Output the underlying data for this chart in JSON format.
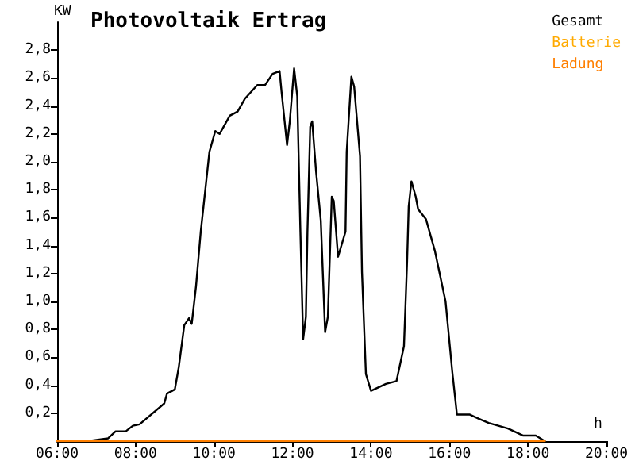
{
  "chart_data": {
    "type": "line",
    "title": "Photovoltaik Ertrag",
    "xlabel": "h",
    "ylabel": "KW",
    "xlim": [
      6,
      20
    ],
    "ylim": [
      0,
      3
    ],
    "xticks": [
      {
        "value": 6,
        "label": "06:00"
      },
      {
        "value": 8,
        "label": "08:00"
      },
      {
        "value": 10,
        "label": "10:00"
      },
      {
        "value": 12,
        "label": "12:00"
      },
      {
        "value": 14,
        "label": "14:00"
      },
      {
        "value": 16,
        "label": "16:00"
      },
      {
        "value": 18,
        "label": "18:00"
      },
      {
        "value": 20,
        "label": "20:00"
      }
    ],
    "yticks": [
      {
        "value": 0.2,
        "label": "0,2"
      },
      {
        "value": 0.4,
        "label": "0,4"
      },
      {
        "value": 0.6,
        "label": "0,6"
      },
      {
        "value": 0.8,
        "label": "0,8"
      },
      {
        "value": 1.0,
        "label": "1,0"
      },
      {
        "value": 1.2,
        "label": "1,2"
      },
      {
        "value": 1.4,
        "label": "1,4"
      },
      {
        "value": 1.6,
        "label": "1,6"
      },
      {
        "value": 1.8,
        "label": "1,8"
      },
      {
        "value": 2.0,
        "label": "2,0"
      },
      {
        "value": 2.2,
        "label": "2,2"
      },
      {
        "value": 2.4,
        "label": "2,4"
      },
      {
        "value": 2.6,
        "label": "2,6"
      },
      {
        "value": 2.8,
        "label": "2,8"
      }
    ],
    "grid": false,
    "legend": "top right",
    "marker": "none",
    "line_style": "solid",
    "series": [
      {
        "name": "Gesamt",
        "color": "#000000",
        "x": [
          6.78,
          7.3,
          7.49,
          7.75,
          7.93,
          8.1,
          8.73,
          8.8,
          9.0,
          9.1,
          9.24,
          9.36,
          9.43,
          9.54,
          9.66,
          9.73,
          9.88,
          10.03,
          10.14,
          10.4,
          10.6,
          10.78,
          11.1,
          11.3,
          11.49,
          11.67,
          11.72,
          11.86,
          11.93,
          12.04,
          12.12,
          12.2,
          12.27,
          12.34,
          12.38,
          12.45,
          12.5,
          12.6,
          12.72,
          12.83,
          12.9,
          13.0,
          13.05,
          13.16,
          13.35,
          13.38,
          13.5,
          13.57,
          13.72,
          13.77,
          13.87,
          14.0,
          14.38,
          14.65,
          14.84,
          14.92,
          14.96,
          15.03,
          15.14,
          15.2,
          15.4,
          15.63,
          15.9,
          16.07,
          16.19,
          16.52,
          16.75,
          17.0,
          17.49,
          17.87,
          18.2,
          18.43
        ],
        "values": [
          0,
          0.02,
          0.07,
          0.07,
          0.11,
          0.12,
          0.27,
          0.34,
          0.37,
          0.53,
          0.83,
          0.88,
          0.84,
          1.11,
          1.5,
          1.68,
          2.07,
          2.22,
          2.2,
          2.33,
          2.36,
          2.45,
          2.55,
          2.55,
          2.63,
          2.65,
          2.5,
          2.12,
          2.29,
          2.67,
          2.47,
          1.5,
          0.73,
          0.89,
          1.5,
          2.25,
          2.29,
          1.93,
          1.58,
          0.78,
          0.89,
          1.75,
          1.72,
          1.32,
          1.5,
          2.07,
          2.61,
          2.54,
          2.04,
          1.21,
          0.48,
          0.36,
          0.41,
          0.43,
          0.68,
          1.29,
          1.68,
          1.86,
          1.75,
          1.66,
          1.59,
          1.36,
          1.0,
          0.5,
          0.19,
          0.19,
          0.16,
          0.13,
          0.09,
          0.04,
          0.04,
          0
        ]
      },
      {
        "name": "Batterie",
        "color": "#ffaa00"
      },
      {
        "name": "Ladung",
        "color": "#ff7f00",
        "x": [
          6,
          18.43
        ],
        "values": [
          0,
          0
        ]
      }
    ]
  }
}
